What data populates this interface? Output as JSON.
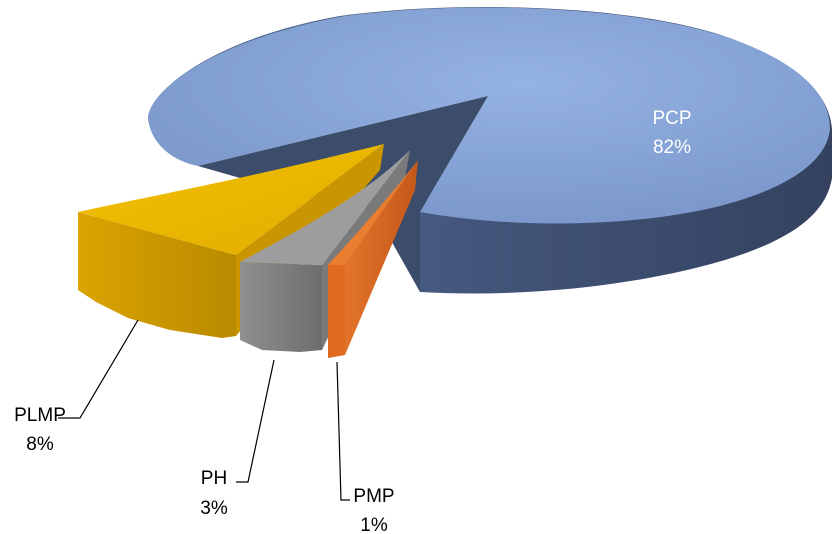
{
  "chart_data": {
    "type": "pie",
    "variant": "3d-exploded",
    "title": "",
    "categories": [
      "PCP",
      "PLMP",
      "PH",
      "PMP"
    ],
    "values": [
      82,
      8,
      3,
      1
    ],
    "labels": [
      "82%",
      "8%",
      "3%",
      "1%"
    ],
    "colors": [
      "#7f9fd4",
      "#e6b200",
      "#8c8c8c",
      "#e06a1e"
    ],
    "legend": "none"
  }
}
